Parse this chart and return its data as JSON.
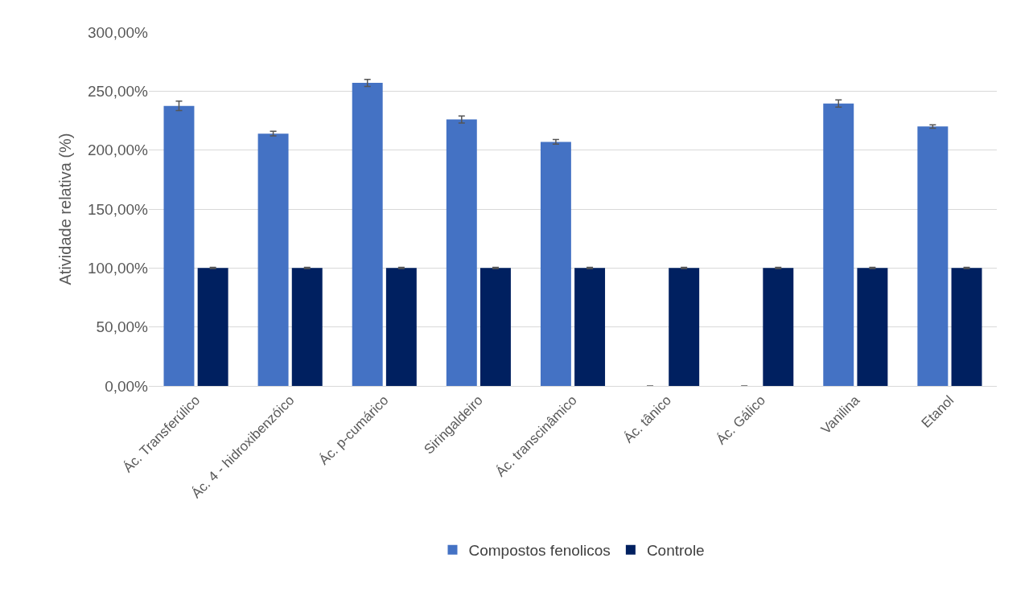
{
  "chart_data": {
    "type": "bar",
    "ylabel": "Atividade relativa (%)",
    "categories": [
      "Ác. Transferúlico",
      "Ác. 4 - hidroxibenzóico",
      "Ác. p-cumárico",
      "Siringaldeiro",
      "Ác. transcinâmico",
      "Ác. tânico",
      "Ác. Gálico",
      "Vanilina",
      "Etanol"
    ],
    "series": [
      {
        "name": "Compostos fenolicos",
        "color": "#4472c4",
        "values": [
          237.5,
          214,
          257,
          226,
          207,
          0,
          0,
          239.5,
          220
        ],
        "errors": [
          4,
          2,
          3,
          3,
          2,
          null,
          null,
          3,
          1.5
        ]
      },
      {
        "name": "Controle",
        "color": "#002060",
        "values": [
          100,
          100,
          100,
          100,
          100,
          100,
          100,
          100,
          100
        ],
        "errors": [
          0.5,
          0.5,
          0.5,
          0.5,
          0.5,
          0.5,
          0.5,
          0.5,
          0.5
        ]
      }
    ],
    "ylim": [
      0,
      300
    ],
    "yticks": [
      {
        "value": 0,
        "label": "0,00%"
      },
      {
        "value": 50,
        "label": "50,00%"
      },
      {
        "value": 100,
        "label": "100,00%"
      },
      {
        "value": 150,
        "label": "150,00%"
      },
      {
        "value": 200,
        "label": "200,00%"
      },
      {
        "value": 250,
        "label": "250,00%"
      },
      {
        "value": 300,
        "label": "300,00%"
      }
    ],
    "grid": "y",
    "legend": "bottom"
  }
}
